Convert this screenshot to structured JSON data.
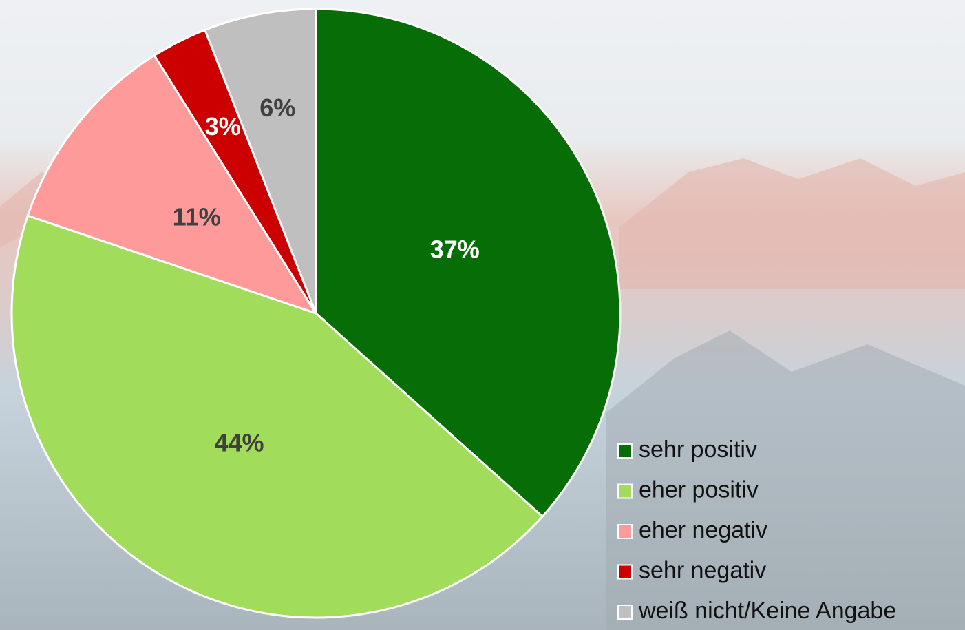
{
  "chart_data": {
    "type": "pie",
    "categories": [
      "sehr positiv",
      "eher positiv",
      "eher negativ",
      "sehr negativ",
      "weiß nicht/Keine Angabe"
    ],
    "values": [
      37,
      44,
      11,
      3,
      6
    ],
    "value_labels": [
      "37%",
      "44%",
      "11%",
      "3%",
      "6%"
    ],
    "colors": [
      "#076e07",
      "#a1dc5a",
      "#ff9a9a",
      "#cc0000",
      "#bfbfbf"
    ],
    "legend": "bottom-right"
  }
}
